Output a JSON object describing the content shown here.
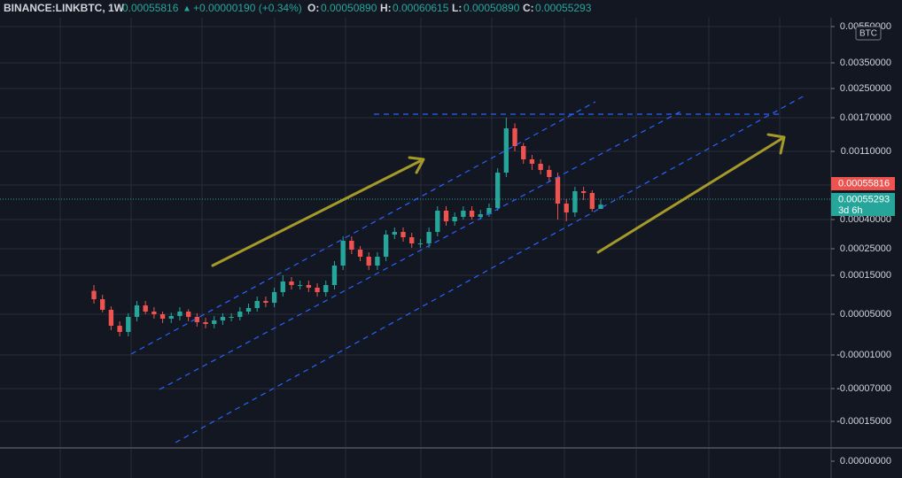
{
  "chart_data": {
    "type": "candlestick",
    "header": {
      "symbol": "BINANCE:LINKBTC, 1W",
      "last": "0.00055816",
      "change_arrow": "▲",
      "change": "+0.00000190 (+0.34%)",
      "open_label": "O:",
      "open": "0.00050890",
      "high_label": "H:",
      "high": "0.00060615",
      "low_label": "L:",
      "low": "0.00050890",
      "close_label": "C:",
      "close": "0.00055293"
    },
    "currency": "BTC",
    "price_tags": [
      {
        "label": "0.00055816",
        "color": "#ef5350"
      },
      {
        "label": "0.00055293",
        "color": "#26a69a",
        "countdown": "3d 6h"
      }
    ],
    "up_color": "#26a69a",
    "down_color": "#ef5350",
    "grid": true,
    "yticks": [
      {
        "value": 0.0055,
        "label": "0.00550000"
      },
      {
        "value": 0.0035,
        "label": "0.00350000"
      },
      {
        "value": 0.0025,
        "label": "0.00250000"
      },
      {
        "value": 0.0017,
        "label": "0.00170000"
      },
      {
        "value": 0.0011,
        "label": "0.00110000"
      },
      {
        "value": 0.0004,
        "label": "0.00040000"
      },
      {
        "value": 0.00025,
        "label": "0.00025000"
      },
      {
        "value": 0.00015,
        "label": "0.00015000"
      },
      {
        "value": 5e-05,
        "label": "0.00005000"
      },
      {
        "value": -1e-05,
        "label": "-0.00001000"
      },
      {
        "value": -7e-05,
        "label": "-0.00007000"
      },
      {
        "value": -0.00015,
        "label": "-0.00015000"
      }
    ],
    "lower_pane_yticks": [
      {
        "value": 0,
        "label": "0.00000000"
      }
    ],
    "open": [
      0.00011,
      8.86e-05,
      6.14e-05,
      3.3e-05,
      2.39e-05,
      4.61e-05,
      7.27e-05,
      5.68e-05,
      5e-05,
      4.35e-05,
      4.74e-05,
      5.68e-05,
      4.61e-05,
      3.83e-05,
      3.57e-05,
      4.09e-05,
      4.61e-05,
      4.61e-05,
      5.68e-05,
      6.59e-05,
      8.41e-05,
      7.95e-05,
      0.0001068,
      0.0001341,
      0.000125,
      0.000125,
      0.0001182,
      0.0001068,
      0.000125,
      0.0001867,
      0.0002909,
      0.0002467,
      0.00022,
      0.0001867,
      0.00022,
      0.0003227,
      0.0003364,
      0.0003091,
      0.0002773,
      0.0002773,
      0.0003364,
      0.0004909,
      0.0003909,
      0.0004273,
      0.0004909,
      0.0004273,
      0.0004545,
      0.0005182,
      0.0008818,
      0.0015105,
      0.0011947,
      0.0010182,
      0.0009727,
      0.0009091,
      0.0008364,
      0.0005636,
      0.0004727,
      0.0006909,
      0.0006727,
      0.0005089
    ],
    "high": [
      0.000125,
      9.99e-05,
      7e-05,
      3.95e-05,
      5.26e-05,
      8.41e-05,
      8.41e-05,
      6.82e-05,
      5.68e-05,
      5.39e-05,
      6.82e-05,
      6.27e-05,
      5.26e-05,
      4.48e-05,
      4.74e-05,
      5.26e-05,
      5.26e-05,
      6.82e-05,
      7.73e-05,
      9.55e-05,
      9.55e-05,
      0.0001182,
      0.00015,
      0.0001455,
      0.0001364,
      0.0001364,
      0.0001295,
      0.0001364,
      0.0002033,
      0.0003136,
      0.0003136,
      0.0002633,
      0.0002367,
      0.0002367,
      0.0003455,
      0.0003591,
      0.0003591,
      0.0003318,
      0.0003,
      0.0003591,
      0.0005364,
      0.0005364,
      0.0004727,
      0.0005364,
      0.0005364,
      0.0005,
      0.0005636,
      0.0009273,
      0.0017,
      0.0016,
      0.00125,
      0.0010636,
      0.0010182,
      0.0009545,
      0.0008818,
      0.0006091,
      0.0007364,
      0.0007364,
      0.0007,
      0.00060615
    ],
    "low": [
      7.72e-05,
      5.5e-05,
      2.65e-05,
      1.74e-05,
      1.74e-05,
      3.96e-05,
      5.03e-05,
      4.35e-05,
      3.7e-05,
      3.7e-05,
      4.09e-05,
      3.96e-05,
      3.18e-05,
      2.92e-05,
      2.92e-05,
      3.44e-05,
      3.96e-05,
      4.09e-05,
      5.03e-05,
      5.68e-05,
      6.82e-05,
      6.82e-05,
      9.55e-05,
      0.0001136,
      0.0001136,
      0.0001068,
      9.55e-05,
      9.55e-05,
      0.0001136,
      0.00017,
      0.00023,
      0.0002033,
      0.00017,
      0.00017,
      0.0002033,
      0.0003,
      0.0002864,
      0.000255,
      0.000255,
      0.000255,
      0.0003136,
      0.0003682,
      0.0003682,
      0.0004,
      0.0004,
      0.0004,
      0.0004273,
      0.0004909,
      0.0008364,
      0.0011,
      0.0009727,
      0.0009091,
      0.0008636,
      0.0007909,
      0.0004,
      0.0003909,
      0.0004273,
      0.0006,
      0.0004818,
      0.0005089
    ],
    "close": [
      8.86e-05,
      6.14e-05,
      3.3e-05,
      2.39e-05,
      4.61e-05,
      7.27e-05,
      5.68e-05,
      5e-05,
      4.35e-05,
      4.74e-05,
      5.68e-05,
      4.61e-05,
      3.83e-05,
      3.57e-05,
      4.09e-05,
      4.61e-05,
      4.61e-05,
      5.68e-05,
      6.59e-05,
      8.41e-05,
      7.95e-05,
      0.0001068,
      0.0001341,
      0.000125,
      0.000125,
      0.0001182,
      0.0001068,
      0.000125,
      0.0001867,
      0.0002909,
      0.0002467,
      0.00022,
      0.0001867,
      0.00022,
      0.0003227,
      0.0003364,
      0.0003091,
      0.0002773,
      0.0002773,
      0.0003364,
      0.0004909,
      0.0003909,
      0.0004273,
      0.0004909,
      0.0004273,
      0.0004545,
      0.0005182,
      0.0008818,
      0.0015105,
      0.0011947,
      0.0010182,
      0.0009727,
      0.0009091,
      0.0008364,
      0.0005636,
      0.0004727,
      0.0006909,
      0.0006727,
      0.0005089,
      0.00055293
    ]
  }
}
